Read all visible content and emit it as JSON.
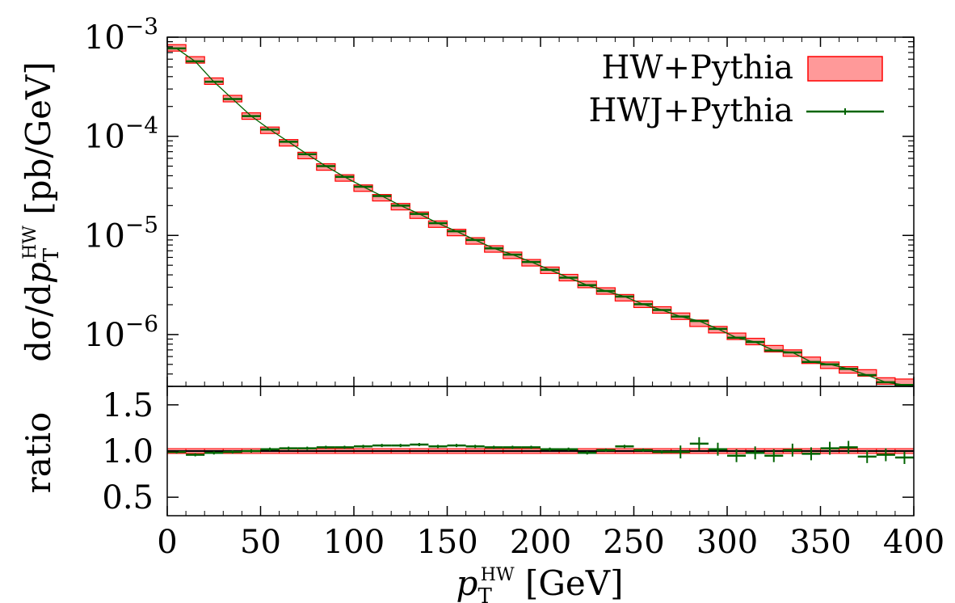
{
  "chart_data": [
    {
      "panel": "main",
      "type": "step",
      "xlabel": "p_T^HW [GeV]",
      "ylabel": "dσ/dp_T^HW [pb/GeV]",
      "yscale": "log",
      "xlim": [
        0,
        400
      ],
      "ylim": [
        3e-07,
        0.001
      ],
      "yticks": [
        "10−3",
        "10−4",
        "10−5",
        "10−6"
      ],
      "x_bin_edges": [
        0,
        10,
        20,
        30,
        40,
        50,
        60,
        70,
        80,
        90,
        100,
        110,
        120,
        130,
        140,
        150,
        160,
        170,
        180,
        190,
        200,
        210,
        220,
        230,
        240,
        250,
        260,
        270,
        280,
        290,
        300,
        310,
        320,
        330,
        340,
        350,
        360,
        370,
        380,
        390,
        400
      ],
      "series": [
        {
          "name": "HW+Pythia",
          "style": "band",
          "color": "#ff9999",
          "values": [
            0.00078,
            0.00059,
            0.00036,
            0.00024,
            0.00016,
            0.000115,
            8.6e-05,
            6.4e-05,
            4.9e-05,
            3.8e-05,
            3e-05,
            2.4e-05,
            1.95e-05,
            1.6e-05,
            1.3e-05,
            1.07e-05,
            8.8e-06,
            7.3e-06,
            6.3e-06,
            5.3e-06,
            4.45e-06,
            3.75e-06,
            3.2e-06,
            2.75e-06,
            2.35e-06,
            2.02e-06,
            1.77e-06,
            1.53e-06,
            1.3e-06,
            1.12e-06,
            9.6e-07,
            8.5e-07,
            7.2e-07,
            6.5e-07,
            5.5e-07,
            4.9e-07,
            4.4e-07,
            4.1e-07,
            3.4e-07,
            3.3e-07
          ]
        },
        {
          "name": "HWJ+Pythia",
          "style": "line",
          "color": "#006400",
          "values": [
            0.00077,
            0.00057,
            0.000355,
            0.000238,
            0.00016,
            0.000117,
            8.8e-05,
            6.6e-05,
            5e-05,
            3.9e-05,
            3.1e-05,
            2.5e-05,
            2e-05,
            1.65e-05,
            1.33e-05,
            1.1e-05,
            9e-06,
            7.4e-06,
            6.4e-06,
            5.4e-06,
            4.5e-06,
            3.75e-06,
            3.15e-06,
            2.75e-06,
            2.42e-06,
            2.02e-06,
            1.77e-06,
            1.52e-06,
            1.37e-06,
            1.14e-06,
            9.3e-07,
            8.4e-07,
            6.9e-07,
            6.6e-07,
            5.3e-07,
            5e-07,
            4.5e-07,
            3.9e-07,
            3.3e-07,
            3.1e-07
          ]
        }
      ]
    },
    {
      "panel": "ratio",
      "type": "scatter",
      "ylabel": "ratio",
      "xlabel": "p_T^HW [GeV]",
      "xlim": [
        0,
        400
      ],
      "ylim": [
        0.3,
        1.7
      ],
      "yticks": [
        "0.5",
        "1.0",
        "1.5"
      ],
      "xticks": [
        "0",
        "50",
        "100",
        "150",
        "200",
        "250",
        "300",
        "350",
        "400"
      ],
      "series": [
        {
          "name": "HW+Pythia",
          "style": "band",
          "color": "#ff0000",
          "values": [
            1.0,
            1.0,
            1.0,
            1.0,
            1.0,
            1.0,
            1.0,
            1.0,
            1.0,
            1.0,
            1.0,
            1.0,
            1.0,
            1.0,
            1.0,
            1.0,
            1.0,
            1.0,
            1.0,
            1.0,
            1.0,
            1.0,
            1.0,
            1.0,
            1.0,
            1.0,
            1.0,
            1.0,
            1.0,
            1.0,
            1.0,
            1.0,
            1.0,
            1.0,
            1.0,
            1.0,
            1.0,
            1.0,
            1.0,
            1.0
          ]
        },
        {
          "name": "HWJ+Pythia",
          "style": "points",
          "color": "#006400",
          "values": [
            0.99,
            0.96,
            0.98,
            0.99,
            1.0,
            1.02,
            1.03,
            1.03,
            1.04,
            1.04,
            1.05,
            1.06,
            1.06,
            1.07,
            1.05,
            1.06,
            1.05,
            1.04,
            1.04,
            1.04,
            1.02,
            1.02,
            0.98,
            1.01,
            1.05,
            1.01,
            0.99,
            0.99,
            1.08,
            1.02,
            0.95,
            0.98,
            0.95,
            1.01,
            0.97,
            1.03,
            1.04,
            0.94,
            0.96,
            0.93
          ]
        }
      ]
    }
  ]
}
